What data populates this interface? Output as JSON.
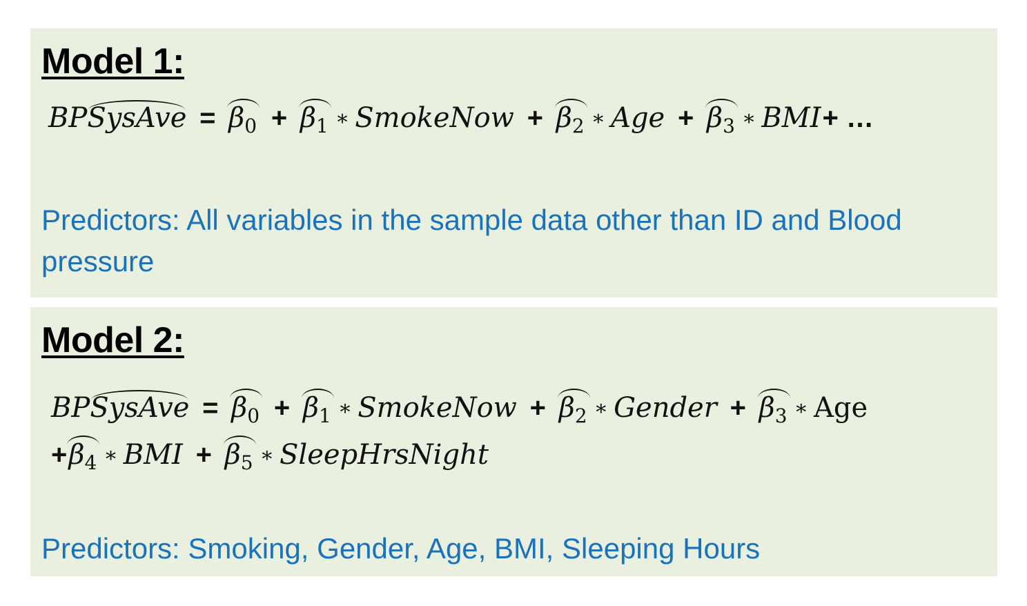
{
  "model1": {
    "title": "Model 1:",
    "equation": {
      "lhs_prefix": "BP",
      "lhs_hat": "SysAve",
      "equals": "=",
      "terms": [
        {
          "beta": "β",
          "index": "0"
        },
        {
          "beta": "β",
          "index": "1",
          "var": "SmokeNow"
        },
        {
          "beta": "β",
          "index": "2",
          "var": "Age"
        },
        {
          "beta": "β",
          "index": "3",
          "var": "BMI"
        }
      ],
      "tail": "+ …"
    },
    "predictors": "Predictors: All variables in the sample data other than ID and Blood pressure"
  },
  "model2": {
    "title": "Model 2:",
    "equation": {
      "lhs_prefix": "BP",
      "lhs_hat": "SysAve",
      "equals": "=",
      "line1_terms": [
        {
          "beta": "β",
          "index": "0"
        },
        {
          "beta": "β",
          "index": "1",
          "var": "SmokeNow"
        },
        {
          "beta": "β",
          "index": "2",
          "var": "Gender"
        },
        {
          "beta": "β",
          "index": "3",
          "var": "Age"
        }
      ],
      "line2_terms": [
        {
          "beta": "β",
          "index": "4",
          "var": "BMI"
        },
        {
          "beta": "β",
          "index": "5",
          "var": "SleepHrsNight"
        }
      ]
    },
    "predictors": "Predictors: Smoking, Gender, Age, BMI, Sleeping Hours"
  },
  "colors": {
    "panel_background": "#e9f0e0",
    "predictor_text": "#1a72bb",
    "title_text": "#000000"
  }
}
